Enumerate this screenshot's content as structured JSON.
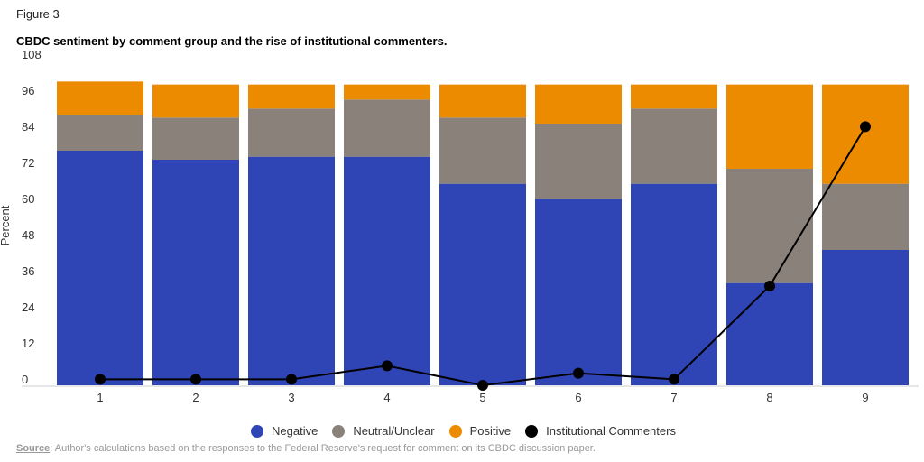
{
  "figure_label": "Figure 3",
  "source_label": "Source",
  "source_text": ": Author's calculations based on the responses to the Federal Reserve's request for comment on its CBDC discussion paper.",
  "chart_data": {
    "type": "bar",
    "stacked": true,
    "title": "CBDC sentiment by comment group and the rise of institutional commenters.",
    "xlabel": "",
    "ylabel": "Percent",
    "ylim": [
      0,
      108
    ],
    "yticks": [
      0,
      12,
      24,
      36,
      48,
      60,
      72,
      84,
      96,
      108
    ],
    "categories": [
      "1",
      "2",
      "3",
      "4",
      "5",
      "6",
      "7",
      "8",
      "9"
    ],
    "grid": false,
    "legend_position": "bottom",
    "series": [
      {
        "name": "Negative",
        "type": "bar",
        "color": "#2f45b5",
        "values": [
          78,
          75,
          76,
          76,
          67,
          62,
          67,
          34,
          45
        ]
      },
      {
        "name": "Neutral/Unclear",
        "type": "bar",
        "color": "#8a827a",
        "values": [
          12,
          14,
          16,
          19,
          22,
          25,
          25,
          38,
          22
        ]
      },
      {
        "name": "Positive",
        "type": "bar",
        "color": "#ec8b00",
        "values": [
          11,
          11,
          8,
          5,
          11,
          13,
          8,
          28,
          33
        ]
      },
      {
        "name": "Institutional Commenters",
        "type": "line",
        "color": "#000000",
        "values": [
          2,
          2,
          2,
          6.5,
          0,
          4,
          2,
          33,
          86
        ]
      }
    ]
  }
}
